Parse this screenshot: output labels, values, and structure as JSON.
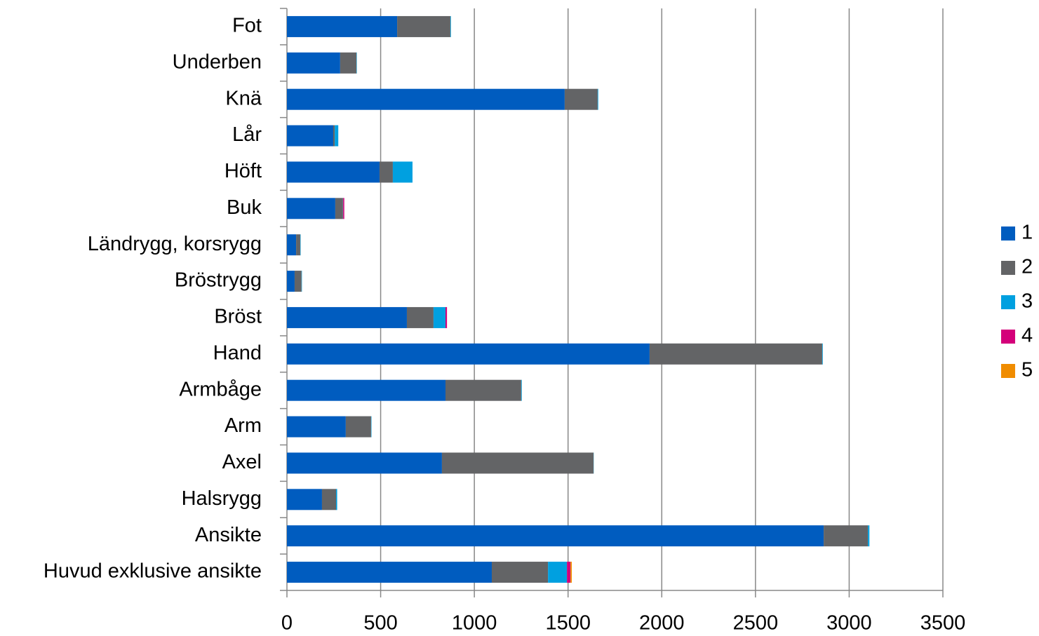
{
  "chart_data": {
    "type": "stacked_barh",
    "categories": [
      "Fot",
      "Underben",
      "Knä",
      "Lår",
      "Höft",
      "Buk",
      "Ländrygg, korsrygg",
      "Bröstrygg",
      "Bröst",
      "Hand",
      "Armbåge",
      "Arm",
      "Axel",
      "Halsrygg",
      "Ansikte",
      "Huvud exklusive ansikte"
    ],
    "series": [
      {
        "name": "1",
        "color": "#005cbf",
        "values": [
          588,
          284,
          1482,
          247,
          494,
          258,
          49,
          41,
          640,
          1935,
          846,
          314,
          827,
          187,
          2864,
          1093
        ]
      },
      {
        "name": "2",
        "color": "#636466",
        "values": [
          284,
          87,
          176,
          8,
          71,
          41,
          22,
          37,
          142,
          921,
          404,
          135,
          809,
          75,
          236,
          300
        ]
      },
      {
        "name": "3",
        "color": "#00a0e0",
        "values": [
          3,
          2,
          3,
          19,
          105,
          1,
          2,
          2,
          64,
          3,
          3,
          2,
          1,
          6,
          8,
          101
        ]
      },
      {
        "name": "4",
        "color": "#d4007a",
        "values": [
          0,
          0,
          0,
          0,
          0,
          6,
          0,
          0,
          8,
          0,
          0,
          0,
          0,
          0,
          0,
          19
        ]
      },
      {
        "name": "5",
        "color": "#f08c00",
        "values": [
          0,
          0,
          0,
          0,
          0,
          0,
          0,
          0,
          0,
          0,
          0,
          0,
          0,
          0,
          0,
          7
        ]
      }
    ],
    "xlim": [
      0,
      3500
    ],
    "xticks": [
      0,
      500,
      1000,
      1500,
      2000,
      2500,
      3000,
      3500
    ],
    "grid": true,
    "legend": "right"
  }
}
